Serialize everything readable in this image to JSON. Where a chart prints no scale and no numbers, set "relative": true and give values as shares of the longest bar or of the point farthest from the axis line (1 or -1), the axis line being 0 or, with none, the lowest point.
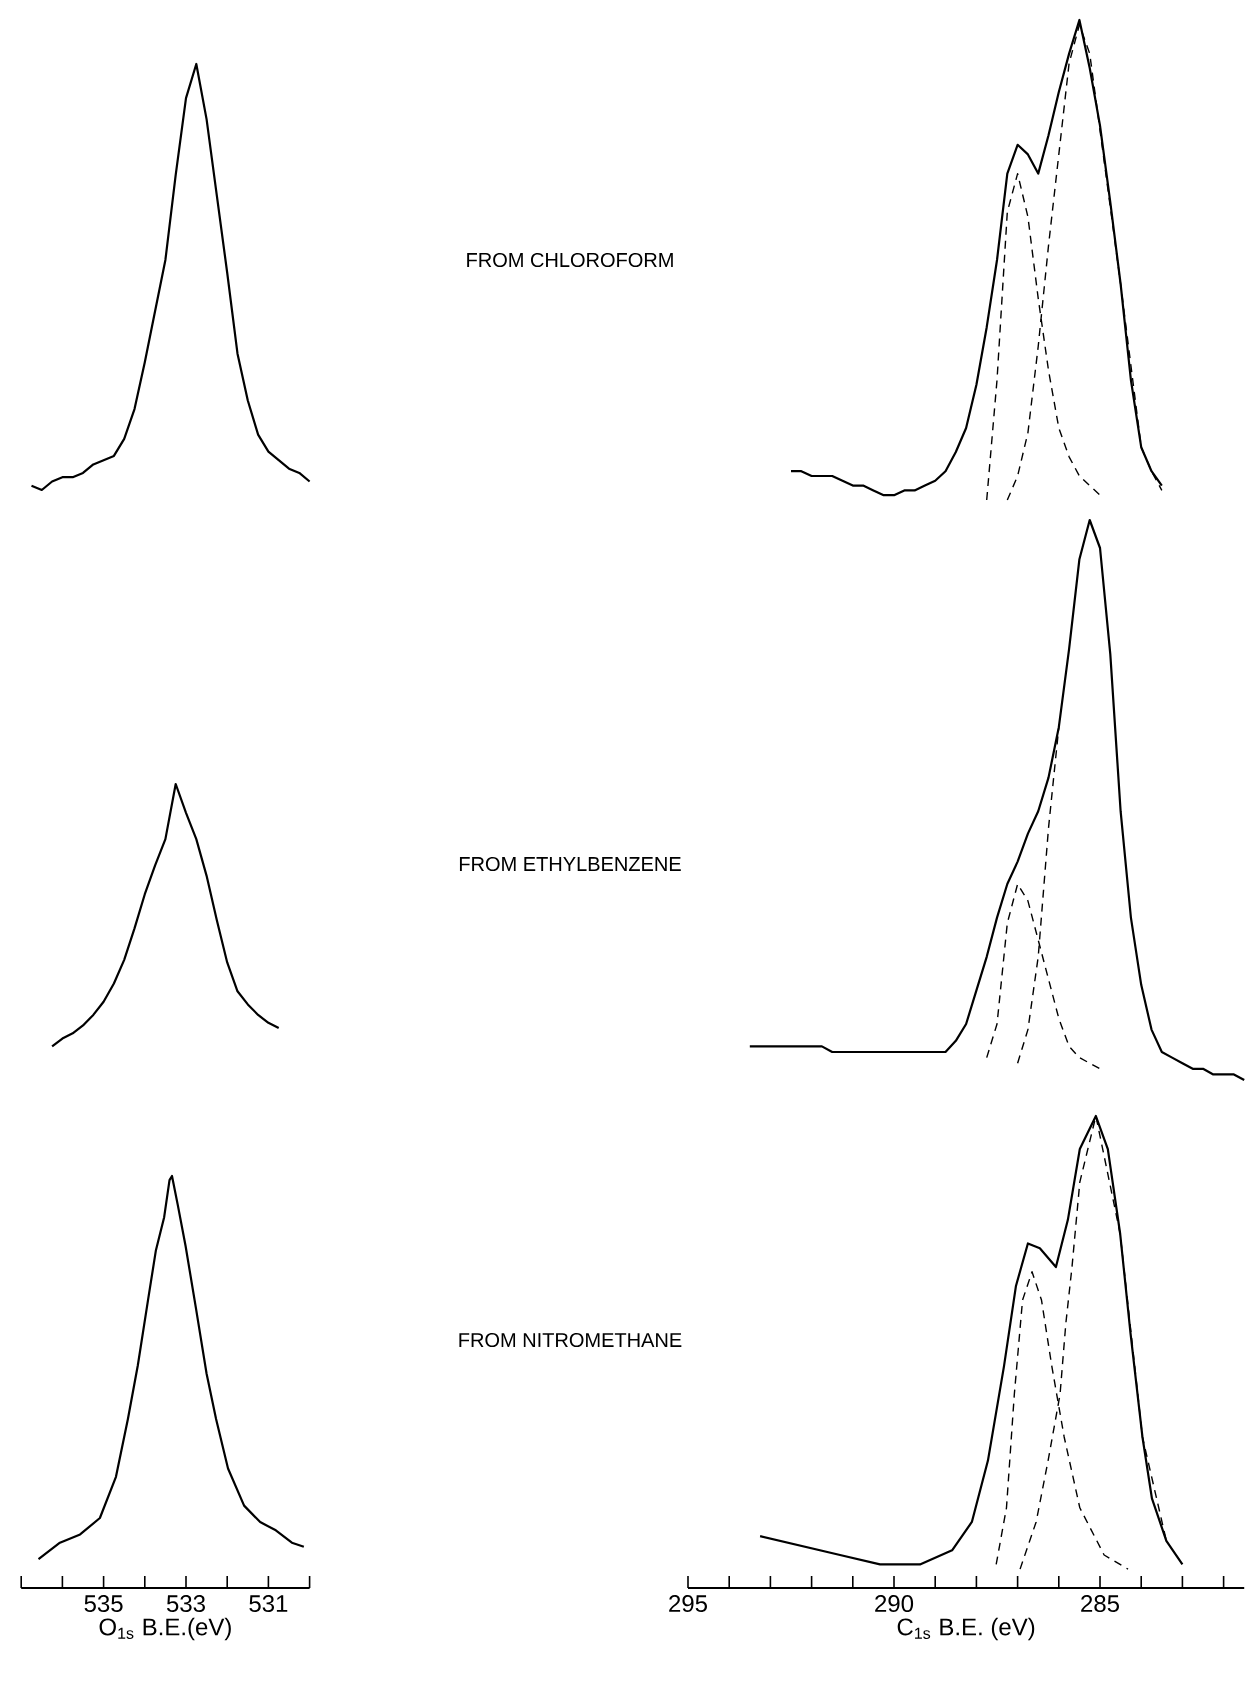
{
  "chart_data": [
    {
      "type": "line",
      "relative": true,
      "tick_labels": false,
      "categories": [
        null,
        null,
        null,
        null,
        null,
        null,
        null,
        null,
        null,
        null,
        null,
        null,
        null,
        null,
        null,
        null,
        null,
        null,
        null,
        null,
        null,
        null,
        null,
        null,
        null,
        null,
        null,
        null
      ],
      "series": [
        {
          "color": "#000000",
          "values": [
            0.01,
            0,
            0.02,
            0.03,
            0.03,
            0.04,
            0.06,
            0.07,
            0.08,
            0.12,
            0.19,
            0.3,
            0.42,
            0.54,
            0.74,
            0.92,
            1.0,
            0.87,
            0.69,
            0.51,
            0.32,
            0.21,
            0.13,
            0.09,
            0.07,
            0.05,
            0.04,
            0.02
          ]
        }
      ]
    },
    {
      "type": "line",
      "relative": true,
      "title": "FROM CHLOROFORM",
      "tick_labels": false,
      "categories": [
        null,
        null,
        null,
        null,
        null,
        null,
        null,
        null,
        null,
        null,
        null,
        null,
        null,
        null,
        null,
        null,
        null,
        null,
        null,
        null,
        null,
        null,
        null,
        null,
        null,
        null,
        null,
        null,
        null,
        null,
        null,
        null,
        null,
        null,
        null,
        null,
        null
      ],
      "series": [
        {
          "color": "#000000",
          "values": [
            0.06,
            0.06,
            0.05,
            0.05,
            0.05,
            0.04,
            0.03,
            0.03,
            0.02,
            0.01,
            0.01,
            0.02,
            0.02,
            0.03,
            0.04,
            0.06,
            0.1,
            0.15,
            0.24,
            0.36,
            0.5,
            0.68,
            0.74,
            0.72,
            0.68,
            0.76,
            0.85,
            0.93,
            1.0,
            0.9,
            0.78,
            0.62,
            0.45,
            0.25,
            0.11,
            0.06,
            0.03
          ]
        },
        {
          "color": "#000000",
          "line_style": "dashed",
          "values": [
            null,
            null,
            null,
            null,
            null,
            null,
            null,
            null,
            null,
            null,
            null,
            null,
            null,
            null,
            null,
            null,
            null,
            null,
            null,
            0,
            0.25,
            0.6,
            0.68,
            0.59,
            0.42,
            0.27,
            0.15,
            0.09,
            0.05,
            0.03,
            0.01,
            null,
            null,
            null,
            null,
            null,
            null
          ]
        },
        {
          "color": "#000000",
          "line_style": "dashed",
          "values": [
            null,
            null,
            null,
            null,
            null,
            null,
            null,
            null,
            null,
            null,
            null,
            null,
            null,
            null,
            null,
            null,
            null,
            null,
            null,
            null,
            null,
            0,
            0.05,
            0.14,
            0.32,
            0.53,
            0.72,
            0.91,
            0.99,
            0.93,
            0.77,
            0.61,
            0.45,
            0.28,
            0.11,
            0.06,
            0.02
          ]
        }
      ]
    },
    {
      "type": "line",
      "relative": true,
      "tick_labels": false,
      "categories": [
        null,
        null,
        null,
        null,
        null,
        null,
        null,
        null,
        null,
        null,
        null,
        null,
        null,
        null,
        null,
        null,
        null,
        null,
        null,
        null,
        null,
        null,
        null
      ],
      "series": [
        {
          "color": "#000000",
          "values": [
            0,
            0.03,
            0.05,
            0.08,
            0.12,
            0.17,
            0.24,
            0.33,
            0.45,
            0.58,
            0.69,
            0.79,
            1.0,
            0.89,
            0.79,
            0.65,
            0.48,
            0.32,
            0.21,
            0.16,
            0.12,
            0.09,
            0.07
          ]
        }
      ]
    },
    {
      "type": "line",
      "relative": true,
      "title": "FROM ETHYLBENZENE",
      "tick_labels": false,
      "categories": [
        null,
        null,
        null,
        null,
        null,
        null,
        null,
        null,
        null,
        null,
        null,
        null,
        null,
        null,
        null,
        null,
        null,
        null,
        null,
        null,
        null,
        null,
        null,
        null,
        null,
        null,
        null,
        null,
        null,
        null,
        null,
        null,
        null,
        null,
        null,
        null,
        null,
        null,
        null,
        null,
        null,
        null,
        null,
        null,
        null,
        null,
        null,
        null,
        null
      ],
      "series": [
        {
          "color": "#000000",
          "values": [
            0.06,
            0.06,
            0.06,
            0.06,
            0.06,
            0.06,
            0.06,
            0.06,
            0.05,
            0.05,
            0.05,
            0.05,
            0.05,
            0.05,
            0.05,
            0.05,
            0.05,
            0.05,
            0.05,
            0.05,
            0.07,
            0.1,
            0.16,
            0.22,
            0.29,
            0.35,
            0.39,
            0.44,
            0.48,
            0.54,
            0.63,
            0.77,
            0.93,
            1.0,
            0.95,
            0.76,
            0.48,
            0.29,
            0.17,
            0.09,
            0.05,
            0.04,
            0.03,
            0.02,
            0.02,
            0.01,
            0.01,
            0.01,
            0
          ]
        },
        {
          "color": "#000000",
          "line_style": "dashed",
          "values": [
            null,
            null,
            null,
            null,
            null,
            null,
            null,
            null,
            null,
            null,
            null,
            null,
            null,
            null,
            null,
            null,
            null,
            null,
            null,
            null,
            null,
            null,
            null,
            0.04,
            0.1,
            0.28,
            0.35,
            0.32,
            0.25,
            0.18,
            0.11,
            0.06,
            0.04,
            0.03,
            0.02,
            null,
            null,
            null,
            null,
            null,
            null,
            null,
            null,
            null,
            null,
            null,
            null,
            null,
            null
          ]
        },
        {
          "color": "#000000",
          "line_style": "dashed",
          "values": [
            null,
            null,
            null,
            null,
            null,
            null,
            null,
            null,
            null,
            null,
            null,
            null,
            null,
            null,
            null,
            null,
            null,
            null,
            null,
            null,
            null,
            null,
            null,
            null,
            null,
            null,
            0.03,
            0.09,
            0.22,
            0.45,
            0.63,
            null,
            null,
            null,
            null,
            null,
            null,
            null,
            null,
            null,
            null,
            null,
            null,
            null,
            null,
            null,
            null,
            null,
            null
          ]
        }
      ]
    },
    {
      "type": "line",
      "relative": true,
      "xlabel": "O$_{1s}$ B.E.(eV)",
      "xlim": [
        537,
        530
      ],
      "xticks": [
        {
          "value": 537,
          "label": null
        },
        {
          "value": 536,
          "label": null
        },
        535,
        {
          "value": 534,
          "label": null
        },
        533,
        {
          "value": 532,
          "label": null
        },
        531,
        {
          "value": 530,
          "label": null
        }
      ],
      "tick_labels": "x",
      "series": [
        {
          "color": "#000000",
          "x": [
            536.58,
            536.06,
            535.57,
            535.09,
            534.7,
            534.41,
            534.17,
            533.92,
            533.73,
            533.53,
            533.4,
            533.34,
            533.2,
            533.01,
            532.76,
            532.5,
            532.27,
            531.98,
            531.59,
            531.2,
            530.82,
            530.43,
            530.14
          ],
          "values": [
            0.07,
            0.11,
            0.13,
            0.17,
            0.27,
            0.41,
            0.54,
            0.7,
            0.82,
            0.9,
            0.99,
            1.0,
            0.93,
            0.83,
            0.68,
            0.52,
            0.41,
            0.29,
            0.2,
            0.16,
            0.14,
            0.11,
            0.1
          ]
        }
      ]
    },
    {
      "type": "line",
      "relative": true,
      "title": "FROM NITROMETHANE",
      "xlabel": "C$_{1s}$ B.E. (eV)",
      "xlim": [
        295,
        281.5
      ],
      "xticks": [
        295,
        {
          "value": 294,
          "label": null
        },
        {
          "value": 293,
          "label": null
        },
        {
          "value": 292,
          "label": null
        },
        {
          "value": 291,
          "label": null
        },
        290,
        {
          "value": 289,
          "label": null
        },
        {
          "value": 288,
          "label": null
        },
        {
          "value": 287,
          "label": null
        },
        {
          "value": 286,
          "label": null
        },
        285,
        {
          "value": 284,
          "label": null
        },
        {
          "value": 283,
          "label": null
        },
        {
          "value": 282,
          "label": null
        }
      ],
      "tick_labels": "x",
      "series": [
        {
          "color": "#000000",
          "x": [
            293.25,
            292.28,
            291.31,
            290.34,
            289.37,
            288.59,
            288.11,
            287.72,
            287.33,
            287.04,
            286.75,
            286.46,
            286.07,
            285.78,
            285.49,
            285.1,
            284.81,
            284.51,
            284.26,
            283.97,
            283.74,
            283.39,
            283.0
          ],
          "values": [
            0.11,
            0.09,
            0.07,
            0.05,
            0.05,
            0.08,
            0.14,
            0.27,
            0.47,
            0.64,
            0.73,
            0.72,
            0.68,
            0.78,
            0.93,
            1.0,
            0.93,
            0.75,
            0.54,
            0.32,
            0.19,
            0.1,
            0.05
          ]
        },
        {
          "color": "#000000",
          "line_style": "dashed",
          "x": [
            287.52,
            287.27,
            287.08,
            286.88,
            286.65,
            286.42,
            286.17,
            285.87,
            285.49,
            284.9,
            284.32
          ],
          "values": [
            0.05,
            0.17,
            0.41,
            0.61,
            0.67,
            0.61,
            0.47,
            0.32,
            0.17,
            0.07,
            0.04
          ]
        },
        {
          "color": "#000000",
          "line_style": "dashed",
          "x": [
            286.94,
            286.55,
            286.26,
            285.97,
            285.83,
            285.68,
            285.49,
            285.1,
            284.51,
            283.97,
            283.39
          ],
          "values": [
            0.04,
            0.14,
            0.27,
            0.41,
            0.56,
            0.68,
            0.86,
            1.0,
            0.75,
            0.32,
            0.1
          ]
        }
      ]
    }
  ]
}
